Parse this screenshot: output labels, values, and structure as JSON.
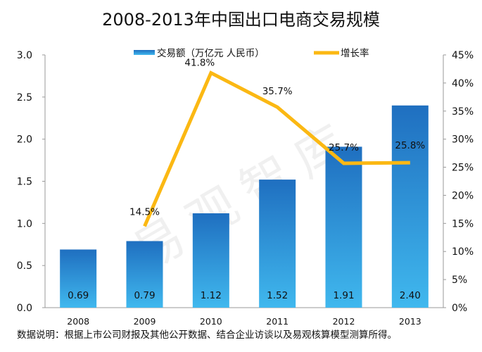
{
  "chart_data": {
    "type": "bar+line",
    "title": "2008-2013年中国出口电商交易规模",
    "categories": [
      "2008",
      "2009",
      "2010",
      "2011",
      "2012",
      "2013"
    ],
    "series": [
      {
        "name": "交易额（万亿元 人民币）",
        "type": "bar",
        "axis": "left",
        "values": [
          0.69,
          0.79,
          1.12,
          1.52,
          1.91,
          2.4
        ],
        "labels": [
          "0.69",
          "0.79",
          "1.12",
          "1.52",
          "1.91",
          "2.40"
        ],
        "color": "#1f6fc0",
        "color_light": "#40b8ee"
      },
      {
        "name": "增长率",
        "type": "line",
        "axis": "right",
        "values": [
          null,
          14.5,
          41.8,
          35.7,
          25.7,
          25.8
        ],
        "labels": [
          null,
          "14.5%",
          "41.8%",
          "35.7%",
          "25.7%",
          "25.8%"
        ],
        "color": "#fbb813"
      }
    ],
    "left_axis": {
      "range": [
        0,
        3.0
      ],
      "ticks": [
        "0.0",
        "0.5",
        "1.0",
        "1.5",
        "2.0",
        "2.5",
        "3.0"
      ]
    },
    "right_axis": {
      "range": [
        0,
        45
      ],
      "ticks": [
        "0%",
        "5%",
        "10%",
        "15%",
        "20%",
        "25%",
        "30%",
        "35%",
        "40%",
        "45%"
      ]
    },
    "legend_position": "top",
    "grid": false,
    "watermark": "易观智库"
  },
  "note": "数据说明：根据上市公司财报及其他公开数据、结合企业访谈以及易观核算模型测算所得。"
}
